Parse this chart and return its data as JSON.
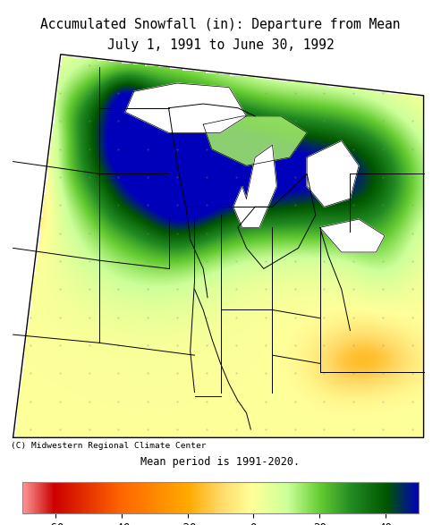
{
  "title_line1": "Accumulated Snowfall (in): Departure from Mean",
  "title_line2": "July 1, 1991 to June 30, 1992",
  "subtitle": "Mean period is 1991-2020.",
  "copyright": "(C) Midwestern Regional Climate Center",
  "colorbar_ticks": [
    -60,
    -40,
    -20,
    0,
    20,
    40
  ],
  "vmin": -70,
  "vmax": 50,
  "background_color": "#FFFFFF",
  "title_fontsize": 10.5,
  "subtitle_fontsize": 8.5,
  "tick_fontsize": 9,
  "cmap_stops": [
    [
      0.0,
      "#FF9999"
    ],
    [
      0.08,
      "#CC0000"
    ],
    [
      0.25,
      "#FF6600"
    ],
    [
      0.42,
      "#FFAA00"
    ],
    [
      0.5,
      "#FFD966"
    ],
    [
      0.58,
      "#FFFF99"
    ],
    [
      0.67,
      "#CCFF99"
    ],
    [
      0.75,
      "#66CC33"
    ],
    [
      0.83,
      "#228B22"
    ],
    [
      0.92,
      "#005500"
    ],
    [
      1.0,
      "#0000BB"
    ]
  ]
}
